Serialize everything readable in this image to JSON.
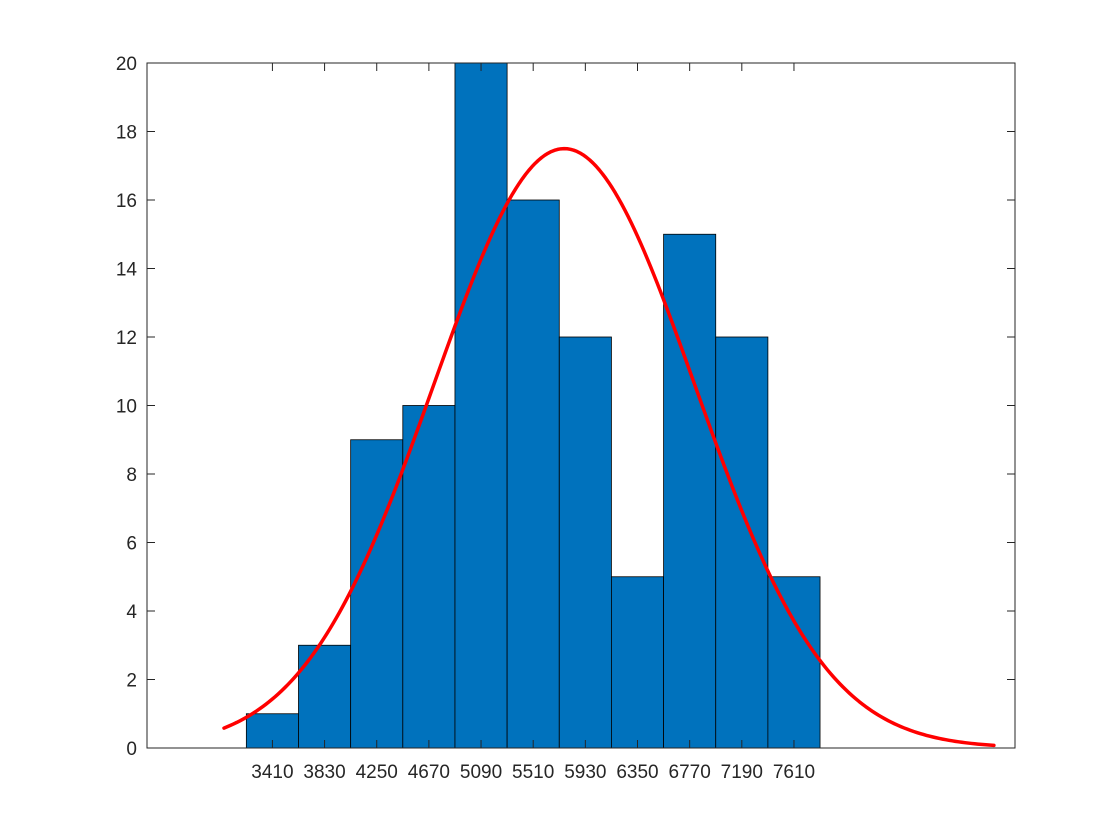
{
  "chart_data": {
    "type": "bar",
    "title": "",
    "xlabel": "",
    "ylabel": "",
    "categories": [
      "3410",
      "3830",
      "4250",
      "4670",
      "5090",
      "5510",
      "5930",
      "6350",
      "6770",
      "7190",
      "7610"
    ],
    "bin_centers": [
      3410,
      3830,
      4250,
      4670,
      5090,
      5510,
      5930,
      6350,
      6770,
      7190,
      7610
    ],
    "bin_width": 420,
    "values": [
      1,
      3,
      9,
      10,
      20,
      16,
      12,
      5,
      15,
      12,
      5
    ],
    "xlim": [
      2400,
      9390
    ],
    "ylim": [
      0,
      20
    ],
    "yticks": [
      0,
      2,
      4,
      6,
      8,
      10,
      12,
      14,
      16,
      18,
      20
    ],
    "xticks": [
      3410,
      3830,
      4250,
      4670,
      5090,
      5510,
      5930,
      6350,
      6770,
      7190,
      7610
    ],
    "grid": false,
    "legend": "none",
    "fit": {
      "type": "normal",
      "mean": 5760,
      "sigma": 1050,
      "peak": 17.5,
      "x_range": [
        3020,
        9220
      ],
      "color": "#ff0000"
    },
    "bar_color": "#0072bd"
  }
}
